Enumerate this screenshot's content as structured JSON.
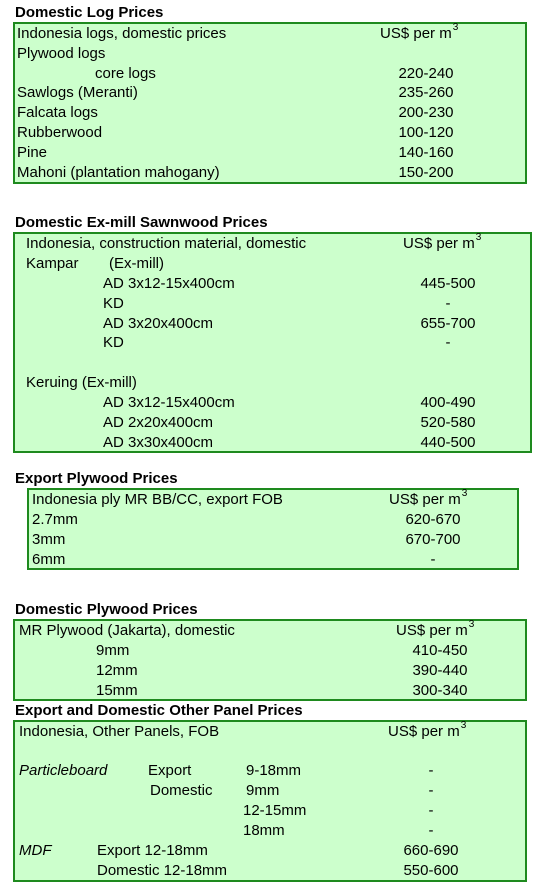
{
  "s1": {
    "title": "Domestic Log Prices",
    "header_label": "Indonesia logs, domestic prices",
    "unit": "US$ per m",
    "unit_sup": "3",
    "rows": [
      {
        "label": "Plywood logs",
        "value": ""
      },
      {
        "label": "core logs",
        "value": "220-240"
      },
      {
        "label": "Sawlogs (Meranti)",
        "value": "235-260"
      },
      {
        "label": "Falcata logs",
        "value": "200-230"
      },
      {
        "label": "Rubberwood",
        "value": "100-120"
      },
      {
        "label": "Pine",
        "value": "140-160"
      },
      {
        "label": "Mahoni (plantation mahogany)",
        "value": "150-200"
      }
    ]
  },
  "s2": {
    "title": "Domestic Ex-mill Sawnwood Prices",
    "header_label": "Indonesia, construction material, domestic",
    "unit": "US$ per m",
    "unit_sup": "3",
    "kampar": "Kampar",
    "kampar_note": "(Ex-mill)",
    "rows_a": [
      {
        "label": "AD 3x12-15x400cm",
        "value": "445-500"
      },
      {
        "label": "KD",
        "value": "-"
      },
      {
        "label": "AD 3x20x400cm",
        "value": "655-700"
      },
      {
        "label": "KD",
        "value": "-"
      }
    ],
    "keruing": "Keruing (Ex-mill)",
    "rows_b": [
      {
        "label": "AD 3x12-15x400cm",
        "value": "400-490"
      },
      {
        "label": "AD 2x20x400cm",
        "value": "520-580"
      },
      {
        "label": "AD 3x30x400cm",
        "value": "440-500"
      }
    ]
  },
  "s3": {
    "title": "Export Plywood Prices",
    "header_label": "Indonesia ply MR BB/CC, export FOB",
    "unit": "US$ per m",
    "unit_sup": "3",
    "rows": [
      {
        "label": "2.7mm",
        "value": "620-670"
      },
      {
        "label": "3mm",
        "value": "670-700"
      },
      {
        "label": "6mm",
        "value": "-"
      }
    ]
  },
  "s4": {
    "title": "Domestic Plywood Prices",
    "header_label": "MR Plywood (Jakarta), domestic",
    "unit": "US$ per m",
    "unit_sup": "3",
    "rows": [
      {
        "label": "9mm",
        "value": "410-450"
      },
      {
        "label": "12mm",
        "value": "390-440"
      },
      {
        "label": "15mm",
        "value": "300-340"
      }
    ]
  },
  "s5": {
    "title": "Export and Domestic Other Panel Prices",
    "header_label": "Indonesia, Other Panels, FOB",
    "unit": "US$ per m",
    "unit_sup": "3",
    "particleboard": "Particleboard",
    "pb_rows": [
      {
        "market": "Export",
        "size": "9-18mm",
        "value": "-"
      },
      {
        "market": "Domestic",
        "size": "9mm",
        "value": "-"
      },
      {
        "market": "",
        "size": "12-15mm",
        "value": "-"
      },
      {
        "market": "",
        "size": "18mm",
        "value": "-"
      }
    ],
    "mdf": "MDF",
    "mdf_rows": [
      {
        "label": "Export 12-18mm",
        "value": "660-690"
      },
      {
        "label": "Domestic 12-18mm",
        "value": "550-600"
      }
    ]
  }
}
